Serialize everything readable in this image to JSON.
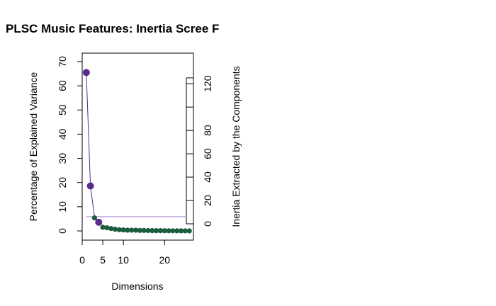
{
  "chart_data": {
    "type": "scatter",
    "title": "PLSC Music Features: Inertia Scree F",
    "xlabel": "Dimensions",
    "ylabel": "Percentage of Explained Variance",
    "ylabel_right": "Inertia Extracted by the Components",
    "xlim": [
      0,
      27
    ],
    "ylim": [
      0,
      70
    ],
    "ylim_right": [
      0,
      128
    ],
    "x_ticks": [
      0,
      5,
      10,
      20
    ],
    "y_ticks": [
      0,
      10,
      20,
      30,
      40,
      50,
      60,
      70
    ],
    "y_ticks_right": [
      0,
      20,
      40,
      60,
      80,
      120
    ],
    "right_axis_segment": [
      0,
      125
    ],
    "reference_line_y": 5.9,
    "colors": {
      "significant": "#5b2a8e",
      "nonsignificant": "#1a5e3f",
      "line": "#5b2a8e",
      "reference_line": "#b79ad7"
    },
    "series": [
      {
        "x": [
          1,
          2,
          3,
          4,
          5,
          6,
          7,
          8,
          9,
          10,
          11,
          12,
          13,
          14,
          15,
          16,
          17,
          18,
          19,
          20,
          21,
          22,
          23,
          24,
          25,
          26
        ],
        "y": [
          65.5,
          18.6,
          5.4,
          3.6,
          1.5,
          1.3,
          1.0,
          0.7,
          0.5,
          0.4,
          0.3,
          0.3,
          0.3,
          0.2,
          0.2,
          0.15,
          0.12,
          0.1,
          0.1,
          0.08,
          0.06,
          0.05,
          0.04,
          0.03,
          0.02,
          0.01
        ],
        "significant": [
          true,
          true,
          false,
          true,
          false,
          false,
          false,
          false,
          false,
          false,
          false,
          false,
          false,
          false,
          false,
          false,
          false,
          false,
          false,
          false,
          false,
          false,
          false,
          false,
          false,
          false
        ]
      }
    ]
  }
}
